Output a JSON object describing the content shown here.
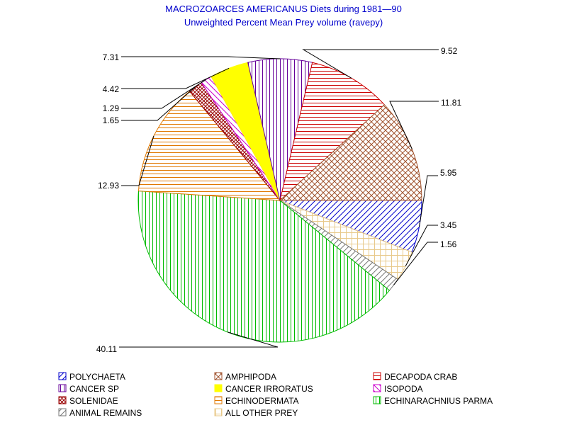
{
  "chart_data": {
    "type": "pie",
    "title": "MACROZOARCES AMERICANUS Diets during 1981—90",
    "subtitle": "Unweighted Percent Mean Prey volume (ravepy)",
    "slices": [
      {
        "name": "POLYCHAETA",
        "value": 5.95,
        "label": "5.95",
        "color": "#0000cc",
        "pattern": "diag-up"
      },
      {
        "name": "ALL OTHER PREY",
        "value": 3.45,
        "label": "3.45",
        "color": "#e8c98a",
        "pattern": "grid"
      },
      {
        "name": "ANIMAL REMAINS",
        "value": 1.56,
        "label": "1.56",
        "color": "#777777",
        "pattern": "diag-up"
      },
      {
        "name": "ECHINARACHNIUS PARMA",
        "value": 40.11,
        "label": "40.11",
        "color": "#00bb00",
        "pattern": "vert"
      },
      {
        "name": "ECHINODERMATA",
        "value": 12.93,
        "label": "12.93",
        "color": "#e07800",
        "pattern": "horiz"
      },
      {
        "name": "SOLENIDAE",
        "value": 1.65,
        "label": "1.65",
        "color": "#990000",
        "pattern": "crosshatch-dense"
      },
      {
        "name": "ISOPODA",
        "value": 1.29,
        "label": "1.29",
        "color": "#cc00cc",
        "pattern": "diag-down"
      },
      {
        "name": "CANCER IRRORATUS",
        "value": 4.42,
        "label": "4.42",
        "color": "#ffff00",
        "pattern": "solid"
      },
      {
        "name": "CANCER SP",
        "value": 7.31,
        "label": "7.31",
        "color": "#660099",
        "pattern": "vert"
      },
      {
        "name": "DECAPODA CRAB",
        "value": 9.52,
        "label": "9.52",
        "color": "#cc0000",
        "pattern": "horiz"
      },
      {
        "name": "AMPHIPODA",
        "value": 11.81,
        "label": "11.81",
        "color": "#a0522d",
        "pattern": "crosshatch"
      }
    ],
    "legend": [
      {
        "name": "POLYCHAETA",
        "color": "#0000cc",
        "pattern": "diag-up"
      },
      {
        "name": "AMPHIPODA",
        "color": "#a0522d",
        "pattern": "crosshatch"
      },
      {
        "name": "DECAPODA CRAB",
        "color": "#cc0000",
        "pattern": "horiz"
      },
      {
        "name": "CANCER SP",
        "color": "#660099",
        "pattern": "vert"
      },
      {
        "name": "CANCER IRRORATUS",
        "color": "#ffff00",
        "pattern": "solid"
      },
      {
        "name": "ISOPODA",
        "color": "#cc00cc",
        "pattern": "diag-down"
      },
      {
        "name": "SOLENIDAE",
        "color": "#990000",
        "pattern": "crosshatch-dense"
      },
      {
        "name": "ECHINODERMATA",
        "color": "#e07800",
        "pattern": "horiz"
      },
      {
        "name": "ECHINARACHNIUS PARMA",
        "color": "#00bb00",
        "pattern": "vert"
      },
      {
        "name": "ANIMAL REMAINS",
        "color": "#777777",
        "pattern": "diag-up"
      },
      {
        "name": "ALL OTHER PREY",
        "color": "#e8c98a",
        "pattern": "grid"
      }
    ],
    "legend_placement": "bottom"
  }
}
